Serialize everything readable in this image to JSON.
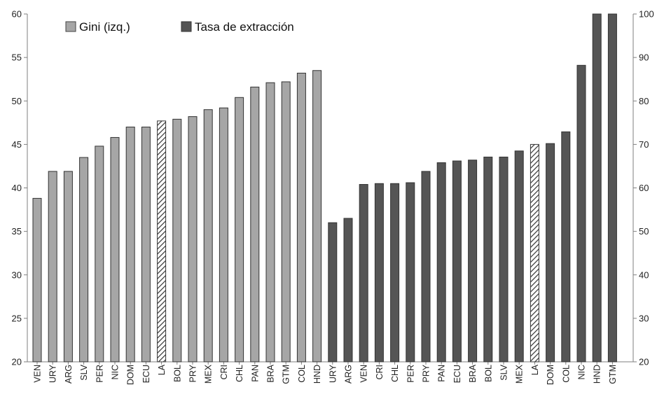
{
  "chart_data": {
    "type": "bar",
    "title": "",
    "xlabel": "",
    "ylabel": "",
    "ylim": [
      20,
      60
    ],
    "y2lim": [
      20,
      100
    ],
    "y_ticks": [
      20,
      25,
      30,
      35,
      40,
      45,
      50,
      55,
      60
    ],
    "y2_ticks": [
      20,
      30,
      40,
      50,
      60,
      70,
      80,
      90,
      100
    ],
    "grid": false,
    "legend_position": "top-left",
    "series": [
      {
        "name": "Gini (izq.)",
        "axis": "left",
        "color": "#a6a6a6",
        "categories": [
          "VEN",
          "URY",
          "ARG",
          "SLV",
          "PER",
          "NIC",
          "DOM",
          "ECU",
          "LA",
          "BOL",
          "PRY",
          "MEX",
          "CRI",
          "CHL",
          "PAN",
          "BRA",
          "GTM",
          "COL",
          "HND"
        ],
        "values": [
          38.8,
          41.9,
          41.9,
          43.5,
          44.8,
          45.8,
          47.0,
          47.0,
          47.7,
          47.9,
          48.2,
          49.0,
          49.2,
          50.4,
          51.6,
          52.1,
          52.2,
          53.2,
          53.5
        ],
        "highlight": "LA"
      },
      {
        "name": "Tasa de extracción",
        "axis": "right",
        "color": "#555555",
        "categories": [
          "URY",
          "ARG",
          "VEN",
          "CRI",
          "CHL",
          "PER",
          "PRY",
          "PAN",
          "ECU",
          "BRA",
          "BOL",
          "SLV",
          "MEX",
          "LA",
          "DOM",
          "COL",
          "NIC",
          "HND",
          "GTM"
        ],
        "values": [
          52.0,
          53.0,
          60.8,
          61.0,
          61.0,
          61.2,
          63.8,
          65.8,
          66.2,
          66.4,
          67.1,
          67.1,
          68.5,
          70.0,
          70.2,
          72.9,
          88.2,
          100,
          100
        ],
        "highlight": "LA"
      }
    ]
  }
}
